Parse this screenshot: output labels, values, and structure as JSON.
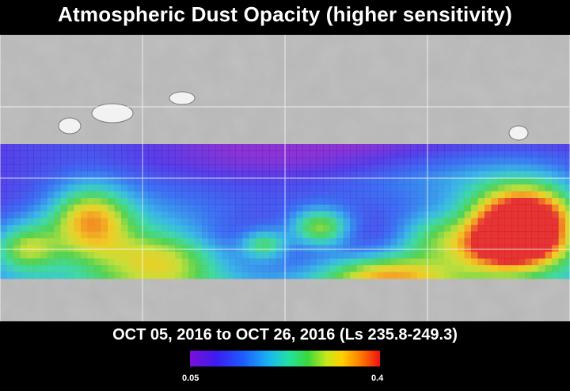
{
  "title": "Atmospheric Dust Opacity (higher sensitivity)",
  "date_range": "OCT 05, 2016 to OCT 26, 2016 (Ls 235.8-249.3)",
  "colorbar": {
    "min_label": "0.05",
    "max_label": "0.4"
  },
  "colors": {
    "background": "#000000",
    "low": "#7a10d8",
    "high": "#ee1010"
  }
}
